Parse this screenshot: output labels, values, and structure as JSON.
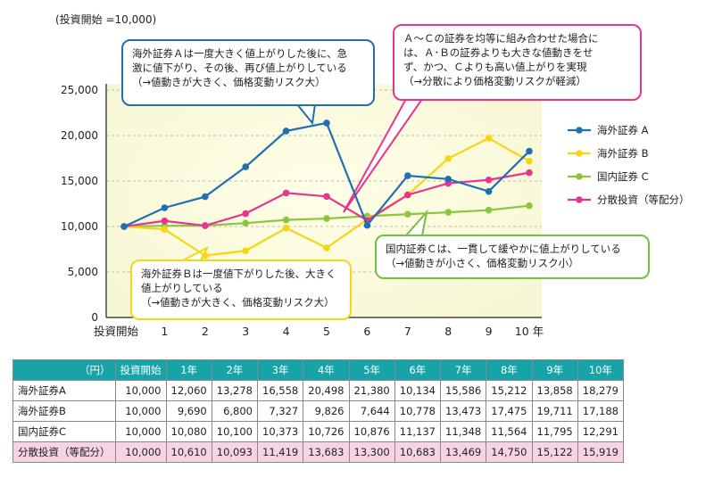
{
  "chart_data": {
    "type": "line",
    "title": "(投資開始 =10,000)",
    "categories": [
      "投資開始",
      "1",
      "2",
      "3",
      "4",
      "5",
      "6",
      "7",
      "8",
      "9",
      "10 年"
    ],
    "ylim": [
      0,
      25000
    ],
    "yticks": [
      "0",
      "5,000",
      "10,000",
      "15,000",
      "20,000",
      "25,000"
    ],
    "series": [
      {
        "name": "海外証券 A",
        "color": "#1f6fb3",
        "values": [
          10000,
          12060,
          13278,
          16558,
          20498,
          21380,
          10134,
          15586,
          15212,
          13858,
          18279
        ]
      },
      {
        "name": "海外証券 B",
        "color": "#f5d515",
        "values": [
          10000,
          9690,
          6800,
          7327,
          9826,
          7644,
          10778,
          13473,
          17475,
          19711,
          17188
        ]
      },
      {
        "name": "国内証券 C",
        "color": "#8cc63f",
        "values": [
          10000,
          10080,
          10100,
          10373,
          10726,
          10876,
          11137,
          11348,
          11564,
          11795,
          12291
        ]
      },
      {
        "name": "分散投資（等配分）",
        "color": "#e8348e",
        "values": [
          10000,
          10610,
          10093,
          11419,
          13683,
          13300,
          10683,
          13469,
          14750,
          15122,
          15919
        ]
      }
    ]
  },
  "callouts": {
    "a": [
      "海外証券Ａは一度大きく値上がりした後に、急",
      "激に値下がり、その後、再び値上がりしている",
      "（→値動きが大きく、価格変動リスク大）"
    ],
    "mix": [
      "Ａ～Ｃの証券を均等に組み合わせた場合に",
      "は、Ａ･Ｂの証券よりも大きな値動きをせ",
      "ず、かつ、Ｃよりも高い値上がりを実現",
      "（→分散により価格変動リスクが軽減）"
    ],
    "b": [
      "海外証券Ｂは一度値下がりした後、大きく",
      "値上がりしている",
      "（→値動きが大きく、価格変動リスク大）"
    ],
    "c": [
      "国内証券Ｃは、一貫して緩やかに値上がりしている",
      "（→値動きが小さく、価格変動リスク小）"
    ]
  },
  "table": {
    "header": [
      "（円）",
      "投資開始",
      "1年",
      "2年",
      "3年",
      "4年",
      "5年",
      "6年",
      "7年",
      "8年",
      "9年",
      "10年"
    ],
    "rows": [
      {
        "label": "海外証券A",
        "values": [
          "10,000",
          "12,060",
          "13,278",
          "16,558",
          "20,498",
          "21,380",
          "10,134",
          "15,586",
          "15,212",
          "13,858",
          "18,279"
        ]
      },
      {
        "label": "海外証券B",
        "values": [
          "10,000",
          "9,690",
          "6,800",
          "7,327",
          "9,826",
          "7,644",
          "10,778",
          "13,473",
          "17,475",
          "19,711",
          "17,188"
        ]
      },
      {
        "label": "国内証券C",
        "values": [
          "10,000",
          "10,080",
          "10,100",
          "10,373",
          "10,726",
          "10,876",
          "11,137",
          "11,348",
          "11,564",
          "11,795",
          "12,291"
        ]
      },
      {
        "label": "分散投資（等配分）",
        "values": [
          "10,000",
          "10,610",
          "10,093",
          "11,419",
          "13,683",
          "13,300",
          "10,683",
          "13,469",
          "14,750",
          "15,122",
          "15,919"
        ]
      }
    ]
  }
}
